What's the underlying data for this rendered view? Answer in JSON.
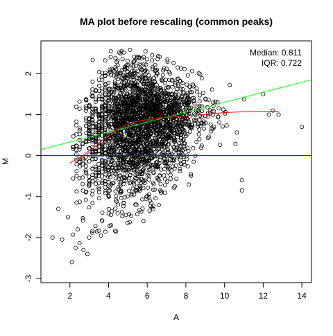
{
  "chart_data": {
    "type": "scatter",
    "title": "MA plot before rescaling (common peaks)",
    "xlabel": "A",
    "ylabel": "M",
    "xlim": [
      0.5,
      14.5
    ],
    "ylim": [
      -3.1,
      2.8
    ],
    "x_ticks": [
      2,
      4,
      6,
      8,
      10,
      12,
      14
    ],
    "y_ticks": [
      -3,
      -2,
      -1,
      0,
      1,
      2
    ],
    "grid": false,
    "legend": "none",
    "annotations": {
      "median_text": "Median: 0.811",
      "iqr_text": "IQR: 0.722",
      "placement": "top-right"
    },
    "colors": {
      "points": "#000000",
      "zero_line": "#0000ff",
      "fit_line": "#00ff00",
      "loess_line": "#ff0000"
    },
    "reference_lines": [
      {
        "name": "zero",
        "type": "horizontal",
        "y": 0
      },
      {
        "name": "fit",
        "type": "linear",
        "x": [
          0.5,
          14.5
        ],
        "y": [
          0.15,
          1.85
        ]
      }
    ],
    "loess_curve": {
      "x": [
        2.0,
        2.5,
        3.0,
        3.5,
        4.0,
        4.5,
        5.0,
        5.5,
        6.0,
        6.5,
        7.0,
        7.5,
        8.0,
        8.5,
        9.0,
        9.5,
        10.0,
        10.5,
        11.0,
        11.5,
        12.0,
        12.8
      ],
      "y": [
        -0.18,
        -0.05,
        0.12,
        0.3,
        0.5,
        0.66,
        0.77,
        0.84,
        0.88,
        0.91,
        0.93,
        0.95,
        0.97,
        0.99,
        1.01,
        1.03,
        1.05,
        1.06,
        1.07,
        1.07,
        1.08,
        1.08
      ]
    },
    "distribution": {
      "center_curve": {
        "x": [
          2.5,
          3,
          4,
          5,
          6,
          7,
          8,
          9,
          10,
          11,
          12
        ],
        "y": [
          0.1,
          0.3,
          0.6,
          0.8,
          0.9,
          0.95,
          1.0,
          1.02,
          1.05,
          1.07,
          1.08
        ]
      },
      "upper_envelope": {
        "x": [
          1.5,
          2,
          2.5,
          3,
          3.5,
          4,
          5,
          6,
          7,
          8,
          9,
          10,
          11,
          12
        ],
        "y": [
          0.5,
          0.8,
          1.5,
          2.2,
          2.5,
          2.55,
          2.6,
          2.55,
          2.4,
          2.2,
          2.0,
          1.8,
          1.6,
          1.4
        ]
      },
      "lower_envelope": {
        "x": [
          1.5,
          2,
          2.5,
          3,
          3.5,
          4,
          5,
          6,
          7,
          8,
          9,
          10,
          11,
          12
        ],
        "y": [
          -2.8,
          -2.6,
          -2.3,
          -2.0,
          -1.9,
          -2.0,
          -1.7,
          -1.4,
          -1.1,
          -0.8,
          -0.4,
          0.0,
          0.3,
          0.6
        ]
      },
      "point_count": 2600
    },
    "points_outlying": {
      "x": [
        1.1,
        1.6,
        2.1,
        2.3,
        2.7,
        2.9,
        3.0,
        3.4,
        3.6,
        5.8,
        10.9,
        10.9,
        14.0,
        12.0,
        12.3,
        12.5,
        12.8,
        1.4,
        1.9,
        2.4
      ],
      "y": [
        -2.0,
        -2.05,
        -2.6,
        -2.25,
        -2.3,
        -2.4,
        -2.0,
        -1.85,
        -1.95,
        -1.6,
        -0.6,
        -0.85,
        0.7,
        1.5,
        1.0,
        1.1,
        1.0,
        -1.3,
        -1.5,
        -1.8
      ]
    }
  }
}
